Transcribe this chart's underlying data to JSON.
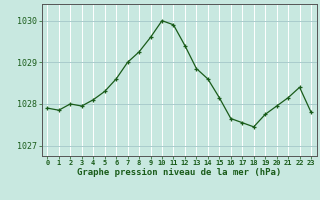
{
  "x": [
    0,
    1,
    2,
    3,
    4,
    5,
    6,
    7,
    8,
    9,
    10,
    11,
    12,
    13,
    14,
    15,
    16,
    17,
    18,
    19,
    20,
    21,
    22,
    23
  ],
  "y": [
    1027.9,
    1027.85,
    1028.0,
    1027.95,
    1028.1,
    1028.3,
    1028.6,
    1029.0,
    1029.25,
    1029.6,
    1030.0,
    1029.9,
    1029.4,
    1028.85,
    1028.6,
    1028.15,
    1027.65,
    1027.55,
    1027.45,
    1027.75,
    1027.95,
    1028.15,
    1028.4,
    1027.8
  ],
  "ylim": [
    1026.75,
    1030.4
  ],
  "yticks": [
    1027,
    1028,
    1029,
    1030
  ],
  "xticks": [
    0,
    1,
    2,
    3,
    4,
    5,
    6,
    7,
    8,
    9,
    10,
    11,
    12,
    13,
    14,
    15,
    16,
    17,
    18,
    19,
    20,
    21,
    22,
    23
  ],
  "line_color": "#1a5c1a",
  "marker_color": "#1a5c1a",
  "bg_color": "#c8e8e0",
  "grid_color": "#aacccc",
  "xlabel": "Graphe pression niveau de la mer (hPa)",
  "xlabel_color": "#1a5c1a",
  "tick_color": "#1a5c1a",
  "axis_color": "#555555",
  "tick_fontsize": 5.0,
  "ytick_fontsize": 6.0,
  "xlabel_fontsize": 6.5
}
